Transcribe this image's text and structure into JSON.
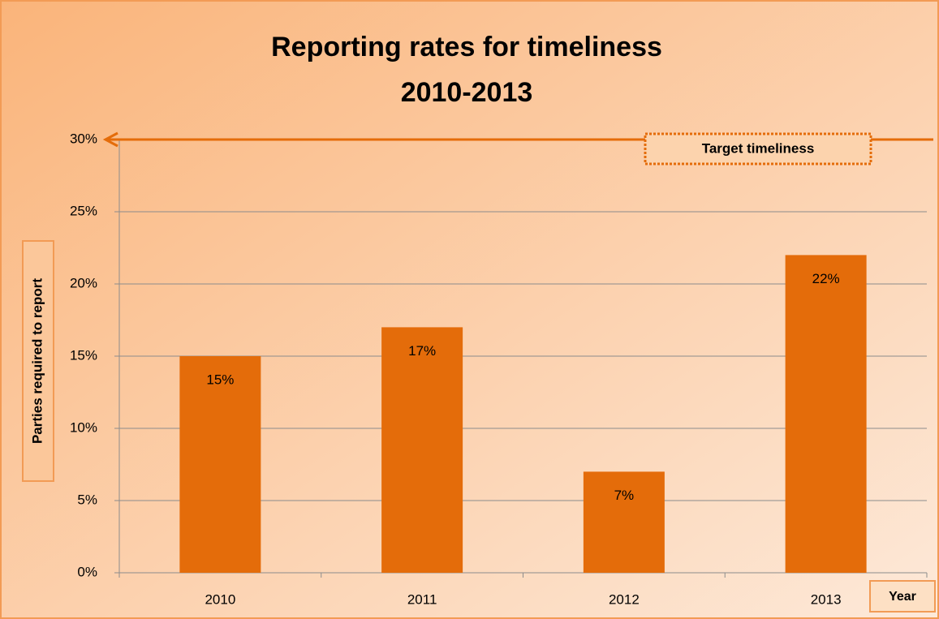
{
  "chart_data": {
    "type": "bar",
    "title": [
      "Reporting rates for timeliness",
      "2010-2013"
    ],
    "y_label": "Parties required to report",
    "x_label": "Year",
    "categories": [
      "2010",
      "2011",
      "2012",
      "2013"
    ],
    "values": [
      15,
      17,
      7,
      22
    ],
    "value_labels": [
      "15%",
      "17%",
      "7%",
      "22%"
    ],
    "color": "#e46c0a",
    "ylim": [
      0,
      30
    ],
    "yticks": [
      {
        "value": 0,
        "label": "0%"
      },
      {
        "value": 5,
        "label": "5%"
      },
      {
        "value": 10,
        "label": "10%"
      },
      {
        "value": 15,
        "label": "15%"
      },
      {
        "value": 20,
        "label": "20%"
      },
      {
        "value": 25,
        "label": "25%"
      },
      {
        "value": 30,
        "label": "30%"
      }
    ],
    "grid": true,
    "target": {
      "label": "Target timeliness",
      "value": 30
    }
  }
}
